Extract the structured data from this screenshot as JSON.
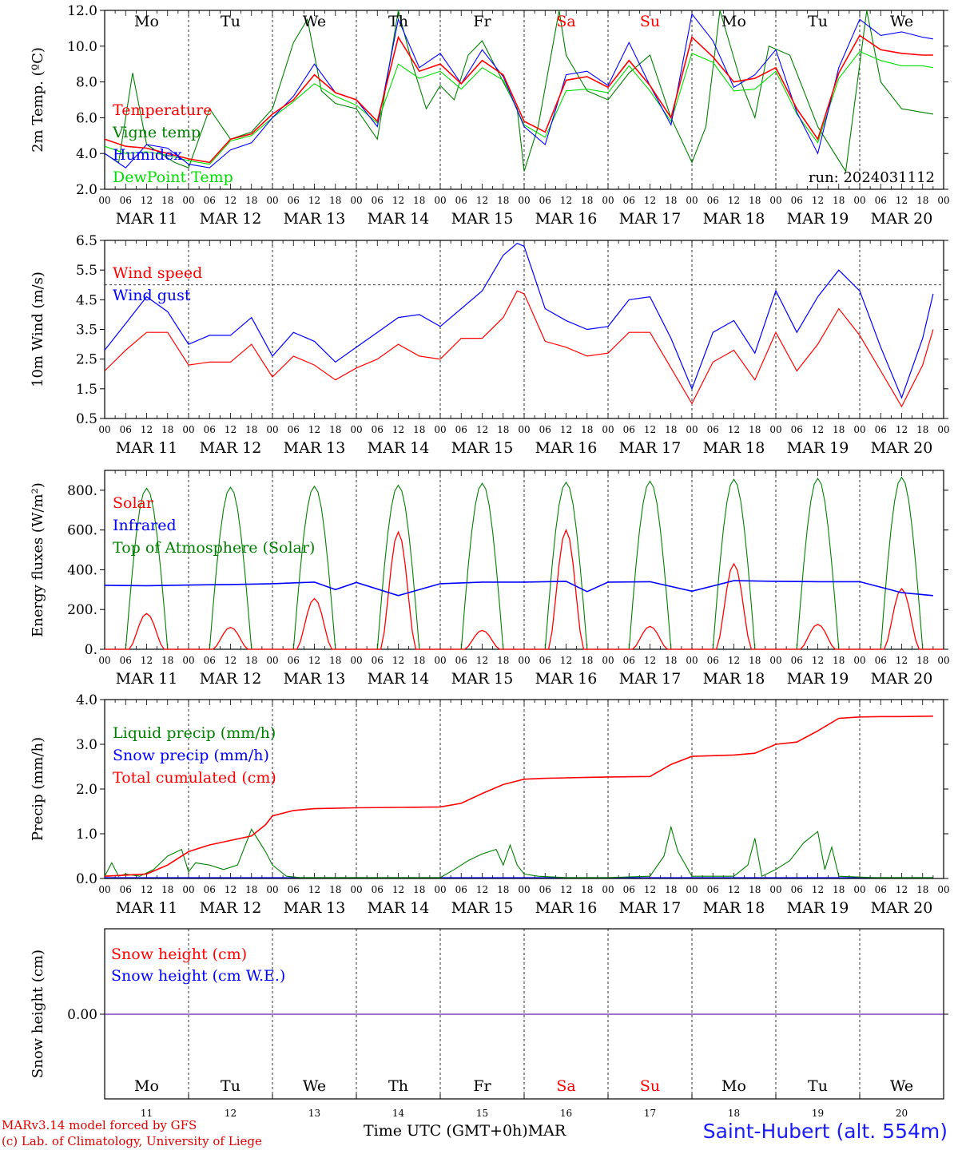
{
  "footer": {
    "credit_line1": "MARv3.14 model forced by GFS",
    "credit_line2": "(c) Lab. of Climatology, University of Liege",
    "time_axis_label": "Time UTC (GMT+0h)",
    "month_label": "MAR",
    "station": "Saint-Hubert (alt. 554m)"
  },
  "days": {
    "weekdays": [
      "Mo",
      "Tu",
      "We",
      "Th",
      "Fr",
      "Sa",
      "Su",
      "Mo",
      "Tu",
      "We"
    ],
    "weekday_colors": [
      "#000000",
      "#000000",
      "#000000",
      "#000000",
      "#000000",
      "#ff0000",
      "#ff0000",
      "#000000",
      "#000000",
      "#000000"
    ],
    "date_labels": [
      "MAR 11",
      "MAR 12",
      "MAR 13",
      "MAR 14",
      "MAR 15",
      "MAR 16",
      "MAR 17",
      "MAR 18",
      "MAR 19",
      "MAR 20"
    ],
    "day_numbers": [
      "11",
      "12",
      "13",
      "14",
      "15",
      "16",
      "17",
      "18",
      "19",
      "20"
    ],
    "hour_ticks": [
      "00",
      "06",
      "12",
      "18"
    ],
    "final_tick": "00"
  },
  "chart_data": [
    {
      "type": "line",
      "ylabel": "2m Temp. (ºC)",
      "ylim": [
        2,
        12
      ],
      "y_ticks": [
        "2.0",
        "4.0",
        "6.0",
        "8.0",
        "10.0",
        "12.0"
      ],
      "annotation": "run: 2024031112",
      "series": [
        {
          "name": "Temperature",
          "color": "#ff0000",
          "x": [
            0,
            6,
            12,
            18,
            24,
            30,
            36,
            42,
            48,
            54,
            60,
            66,
            72,
            78,
            84,
            90,
            96,
            102,
            108,
            114,
            120,
            126,
            132,
            138,
            144,
            150,
            156,
            162,
            168,
            174,
            180,
            186,
            192,
            198,
            204,
            210,
            216,
            222,
            228,
            234,
            237
          ],
          "y": [
            4.8,
            4.4,
            4.3,
            4.0,
            3.7,
            3.5,
            4.8,
            5.1,
            6.2,
            7.0,
            8.4,
            7.4,
            7.0,
            5.8,
            10.5,
            8.6,
            9.0,
            7.9,
            9.2,
            8.4,
            5.8,
            5.2,
            8.1,
            8.3,
            7.7,
            9.2,
            7.8,
            6.0,
            10.5,
            9.4,
            8.0,
            8.2,
            8.8,
            6.5,
            4.8,
            8.5,
            10.6,
            9.8,
            9.6,
            9.5,
            9.5
          ]
        },
        {
          "name": "Vigne temp",
          "color": "#008000",
          "x": [
            0,
            4,
            8,
            12,
            16,
            20,
            24,
            30,
            36,
            42,
            48,
            54,
            58,
            62,
            66,
            72,
            78,
            84,
            88,
            92,
            96,
            100,
            104,
            108,
            114,
            118,
            120,
            124,
            130,
            132,
            138,
            144,
            150,
            156,
            162,
            168,
            172,
            176,
            182,
            186,
            190,
            196,
            204,
            212,
            218,
            222,
            228,
            234,
            237
          ],
          "y": [
            4.0,
            3.5,
            8.5,
            4.5,
            4.0,
            3.5,
            3.2,
            6.5,
            4.8,
            5.2,
            6.5,
            10.2,
            11.5,
            7.5,
            6.8,
            6.5,
            4.8,
            12.0,
            9.0,
            6.5,
            7.8,
            7.0,
            9.5,
            10.3,
            8.0,
            6.5,
            3.0,
            5.5,
            12.0,
            9.5,
            7.5,
            7.0,
            8.5,
            9.5,
            6.0,
            3.5,
            5.5,
            12.0,
            8.0,
            6.0,
            10.0,
            9.5,
            5.5,
            3.0,
            12.0,
            8.0,
            6.5,
            6.3,
            6.2
          ]
        },
        {
          "name": "Humidex",
          "color": "#0000ff",
          "x": [
            0,
            6,
            12,
            18,
            24,
            30,
            36,
            42,
            48,
            54,
            60,
            66,
            72,
            78,
            84,
            90,
            96,
            102,
            108,
            114,
            120,
            126,
            132,
            138,
            144,
            150,
            156,
            162,
            168,
            174,
            180,
            186,
            192,
            198,
            204,
            210,
            216,
            222,
            228,
            234,
            237
          ],
          "y": [
            4.0,
            3.2,
            4.5,
            4.3,
            3.4,
            3.2,
            4.2,
            4.6,
            6.0,
            7.2,
            9.0,
            7.4,
            7.0,
            5.5,
            11.5,
            8.8,
            9.6,
            7.9,
            9.8,
            8.3,
            5.5,
            4.5,
            8.4,
            8.6,
            7.8,
            10.2,
            7.8,
            5.6,
            11.8,
            10.3,
            7.7,
            8.4,
            9.8,
            6.3,
            4.0,
            8.8,
            11.5,
            10.6,
            10.8,
            10.5,
            10.4
          ]
        },
        {
          "name": "DewPoint Temp",
          "color": "#00dd00",
          "x": [
            0,
            6,
            12,
            18,
            24,
            30,
            36,
            42,
            48,
            54,
            60,
            66,
            72,
            78,
            84,
            90,
            96,
            102,
            108,
            114,
            120,
            126,
            132,
            138,
            144,
            150,
            156,
            162,
            168,
            174,
            180,
            186,
            192,
            198,
            204,
            210,
            216,
            222,
            228,
            234,
            237
          ],
          "y": [
            4.4,
            4.0,
            4.1,
            3.9,
            3.6,
            3.4,
            4.7,
            5.0,
            6.0,
            6.9,
            7.9,
            7.2,
            6.7,
            5.7,
            9.0,
            8.2,
            8.6,
            7.6,
            8.8,
            8.1,
            5.6,
            4.9,
            7.5,
            7.6,
            7.4,
            8.9,
            7.5,
            5.8,
            9.6,
            9.1,
            7.5,
            7.6,
            8.6,
            6.2,
            4.6,
            8.2,
            9.7,
            9.2,
            8.9,
            8.9,
            8.8
          ]
        }
      ]
    },
    {
      "type": "line",
      "ylabel": "10m Wind (m/s)",
      "ylim": [
        0.5,
        6.5
      ],
      "y_ticks": [
        "0.5",
        "1.5",
        "2.5",
        "3.5",
        "4.5",
        "5.5",
        "6.5"
      ],
      "reference_line": 5.0,
      "series": [
        {
          "name": "Wind speed",
          "color": "#ff0000",
          "x": [
            0,
            6,
            12,
            18,
            24,
            30,
            36,
            42,
            48,
            54,
            60,
            66,
            72,
            78,
            84,
            90,
            96,
            102,
            108,
            114,
            118,
            120,
            126,
            132,
            138,
            144,
            150,
            156,
            162,
            168,
            174,
            180,
            186,
            192,
            198,
            204,
            210,
            216,
            222,
            228,
            234,
            237
          ],
          "y": [
            2.1,
            2.8,
            3.4,
            3.4,
            2.3,
            2.4,
            2.4,
            3.0,
            1.9,
            2.6,
            2.3,
            1.8,
            2.2,
            2.5,
            3.0,
            2.6,
            2.5,
            3.2,
            3.2,
            3.9,
            4.8,
            4.7,
            3.1,
            2.9,
            2.6,
            2.7,
            3.4,
            3.4,
            2.2,
            1.0,
            2.4,
            2.8,
            1.8,
            3.4,
            2.1,
            3.0,
            4.2,
            3.3,
            2.1,
            0.9,
            2.3,
            3.5
          ]
        },
        {
          "name": "Wind gust",
          "color": "#0000ff",
          "x": [
            0,
            6,
            12,
            18,
            24,
            30,
            36,
            42,
            48,
            54,
            60,
            66,
            72,
            78,
            84,
            90,
            96,
            102,
            108,
            114,
            118,
            120,
            126,
            132,
            138,
            144,
            150,
            156,
            162,
            168,
            174,
            180,
            186,
            192,
            198,
            204,
            210,
            216,
            222,
            228,
            234,
            237
          ],
          "y": [
            2.8,
            3.7,
            4.6,
            4.1,
            3.0,
            3.3,
            3.3,
            3.9,
            2.6,
            3.4,
            3.1,
            2.4,
            2.9,
            3.4,
            3.9,
            4.0,
            3.6,
            4.2,
            4.8,
            6.0,
            6.4,
            6.3,
            4.2,
            3.8,
            3.5,
            3.6,
            4.5,
            4.6,
            3.2,
            1.5,
            3.4,
            3.8,
            2.7,
            4.8,
            3.4,
            4.6,
            5.5,
            4.8,
            2.9,
            1.2,
            3.2,
            4.7
          ]
        }
      ]
    },
    {
      "type": "line",
      "ylabel": "Energy fluxes (W/m²)",
      "ylim": [
        0,
        900
      ],
      "y_ticks": [
        "0.",
        "200.",
        "400.",
        "600.",
        "800."
      ],
      "series": [
        {
          "name": "Solar",
          "color": "#ff0000",
          "daily_peaks": [
            180,
            110,
            255,
            590,
            95,
            600,
            115,
            430,
            125,
            305
          ]
        },
        {
          "name": "Infrared",
          "color": "#0000ff",
          "x": [
            0,
            12,
            24,
            36,
            48,
            60,
            66,
            72,
            84,
            96,
            108,
            120,
            132,
            138,
            144,
            156,
            168,
            180,
            192,
            204,
            216,
            228,
            237
          ],
          "y": [
            322,
            320,
            323,
            326,
            330,
            338,
            300,
            336,
            270,
            330,
            338,
            338,
            342,
            290,
            338,
            340,
            292,
            345,
            342,
            340,
            340,
            285,
            270
          ]
        },
        {
          "name": "Top of Atmosphere (Solar)",
          "color": "#008000",
          "daily_peaks": [
            810,
            815,
            820,
            825,
            835,
            840,
            845,
            855,
            860,
            865
          ]
        }
      ]
    },
    {
      "type": "line",
      "ylabel": "Precip (mm/h)",
      "ylim": [
        0,
        4
      ],
      "y_ticks": [
        "0.0",
        "1.0",
        "2.0",
        "3.0",
        "4.0"
      ],
      "series": [
        {
          "name": "Liquid precip (mm/h)",
          "color": "#008000",
          "x": [
            0,
            2,
            4,
            6,
            10,
            14,
            18,
            22,
            24,
            26,
            30,
            34,
            38,
            42,
            46,
            48,
            52,
            56,
            60,
            66,
            72,
            84,
            96,
            100,
            104,
            108,
            112,
            114,
            116,
            118,
            120,
            124,
            132,
            144,
            156,
            160,
            162,
            164,
            168,
            180,
            184,
            186,
            188,
            192,
            196,
            200,
            204,
            206,
            208,
            210,
            220,
            237
          ],
          "y": [
            0.05,
            0.35,
            0.05,
            0.1,
            0.05,
            0.2,
            0.5,
            0.65,
            0.15,
            0.35,
            0.3,
            0.2,
            0.3,
            1.1,
            0.6,
            0.3,
            0.05,
            0.02,
            0.02,
            0.02,
            0.02,
            0.02,
            0.02,
            0.2,
            0.4,
            0.55,
            0.65,
            0.3,
            0.75,
            0.3,
            0.1,
            0.05,
            0.02,
            0.02,
            0.05,
            0.5,
            1.15,
            0.6,
            0.05,
            0.05,
            0.3,
            0.9,
            0.05,
            0.2,
            0.4,
            0.8,
            1.05,
            0.2,
            0.7,
            0.05,
            0.02,
            0.02
          ]
        },
        {
          "name": "Snow precip (mm/h)",
          "color": "#0000ff",
          "x": [
            0,
            237
          ],
          "y": [
            0.02,
            0.02
          ]
        },
        {
          "name": "Total cumulated (cm)",
          "color": "#ff0000",
          "x": [
            0,
            12,
            18,
            24,
            30,
            36,
            42,
            46,
            48,
            54,
            60,
            72,
            84,
            96,
            102,
            108,
            114,
            120,
            126,
            132,
            138,
            144,
            156,
            162,
            168,
            180,
            186,
            192,
            198,
            204,
            210,
            216,
            222,
            228,
            237
          ],
          "y": [
            0.05,
            0.1,
            0.3,
            0.6,
            0.75,
            0.85,
            0.95,
            1.2,
            1.4,
            1.52,
            1.56,
            1.58,
            1.59,
            1.6,
            1.68,
            1.9,
            2.1,
            2.22,
            2.24,
            2.25,
            2.26,
            2.27,
            2.28,
            2.55,
            2.73,
            2.76,
            2.8,
            3.0,
            3.05,
            3.3,
            3.58,
            3.61,
            3.62,
            3.62,
            3.63
          ]
        }
      ]
    },
    {
      "type": "line",
      "ylabel": "Snow height (cm)",
      "y_ticks": [
        "0.00"
      ],
      "series": [
        {
          "name": "Snow height (cm)",
          "color": "#ff0000",
          "x": [
            0,
            237
          ],
          "y": [
            0,
            0
          ]
        },
        {
          "name": "Snow height (cm W.E.)",
          "color": "#0000ff",
          "x": [
            0,
            237
          ],
          "y": [
            0,
            0
          ]
        }
      ]
    }
  ]
}
